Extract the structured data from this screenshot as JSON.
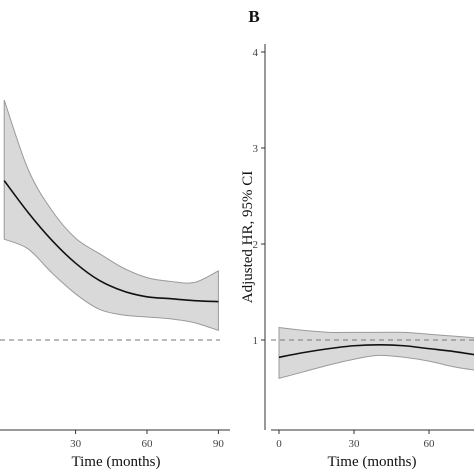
{
  "chart_data": [
    {
      "type": "line",
      "panel_label": "",
      "xlabel": "Time (months)",
      "ylabel": "",
      "x_ticks": [
        30,
        60,
        90
      ],
      "y_ticks": [],
      "reference_line": {
        "y": 1,
        "style": "dashed"
      },
      "grid": false,
      "series": [
        {
          "x": [
            0,
            10,
            20,
            30,
            40,
            50,
            60,
            70,
            80,
            90
          ],
          "y": [
            2.66,
            2.33,
            2.04,
            1.8,
            1.62,
            1.51,
            1.45,
            1.43,
            1.41,
            1.4
          ],
          "lower": [
            2.05,
            1.95,
            1.7,
            1.48,
            1.32,
            1.26,
            1.24,
            1.22,
            1.18,
            1.1
          ],
          "upper": [
            3.5,
            2.78,
            2.35,
            2.06,
            1.9,
            1.75,
            1.65,
            1.61,
            1.6,
            1.72
          ]
        }
      ]
    },
    {
      "type": "line",
      "panel_label": "B",
      "xlabel": "Time (months)",
      "ylabel": "Adjusted HR, 95% CI",
      "x_ticks": [
        0,
        30,
        60
      ],
      "y_ticks": [
        1,
        2,
        3,
        4
      ],
      "reference_line": {
        "y": 1,
        "style": "dashed"
      },
      "grid": false,
      "series": [
        {
          "x": [
            0,
            10,
            20,
            30,
            40,
            50,
            60,
            70,
            80
          ],
          "y": [
            0.82,
            0.87,
            0.91,
            0.94,
            0.95,
            0.94,
            0.91,
            0.88,
            0.84
          ],
          "lower": [
            0.6,
            0.67,
            0.74,
            0.8,
            0.84,
            0.82,
            0.78,
            0.72,
            0.68
          ],
          "upper": [
            1.13,
            1.1,
            1.08,
            1.08,
            1.08,
            1.08,
            1.06,
            1.04,
            1.02
          ]
        }
      ]
    }
  ]
}
